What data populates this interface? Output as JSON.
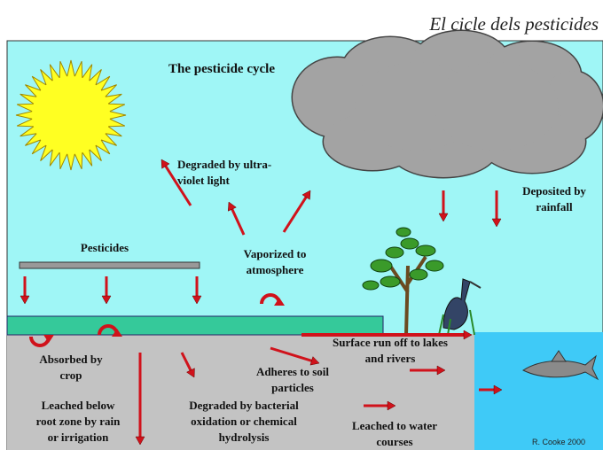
{
  "header": {
    "title": "El cicle dels pesticides"
  },
  "diagram": {
    "title": "The pesticide cycle",
    "labels": [
      {
        "lines": [
          "Degraded by ultra-",
          "violet light"
        ]
      },
      {
        "lines": [
          "Deposited by",
          "rainfall"
        ]
      },
      {
        "lines": [
          "Pesticides"
        ]
      },
      {
        "lines": [
          "Vaporized to",
          "atmosphere"
        ]
      },
      {
        "lines": [
          "Absorbed by",
          "crop"
        ]
      },
      {
        "lines": [
          "Leached below",
          "root zone by rain",
          "or irrigation"
        ]
      },
      {
        "lines": [
          "Degraded by bacterial",
          "oxidation or chemical",
          "hydrolysis"
        ]
      },
      {
        "lines": [
          "Adheres to soil",
          "particles"
        ]
      },
      {
        "lines": [
          "Surface run off to lakes",
          "and rivers"
        ]
      },
      {
        "lines": [
          "Leached to water",
          "courses"
        ]
      }
    ],
    "credit": "R. Cooke 2000"
  }
}
